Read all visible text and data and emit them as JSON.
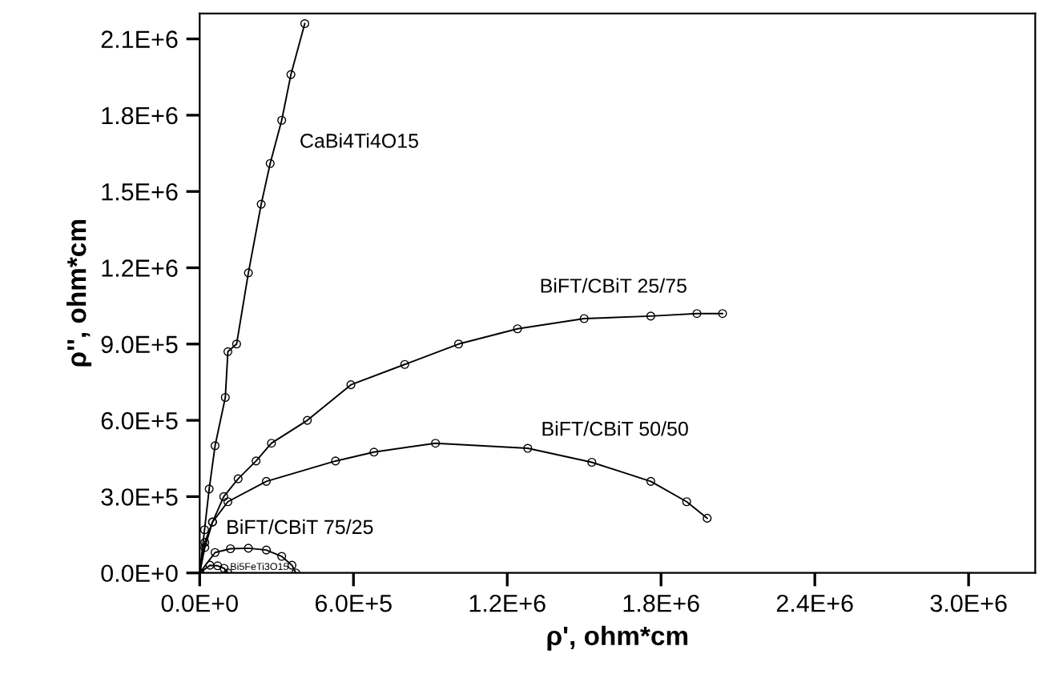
{
  "chart_data": {
    "type": "line",
    "xlabel": "ρ', ohm*cm",
    "ylabel": "ρ'', ohm*cm",
    "marker": "circle",
    "line_style": "solid",
    "grid": false,
    "legend": false,
    "xlim": [
      0,
      3260000
    ],
    "ylim": [
      0,
      2200000
    ],
    "xticks": [
      {
        "value": 0,
        "label": "0.0E+0"
      },
      {
        "value": 600000,
        "label": "6.0E+5"
      },
      {
        "value": 1200000,
        "label": "1.2E+6"
      },
      {
        "value": 1800000,
        "label": "1.8E+6"
      },
      {
        "value": 2400000,
        "label": "2.4E+6"
      },
      {
        "value": 3000000,
        "label": "3.0E+6"
      }
    ],
    "yticks": [
      {
        "value": 0,
        "label": "0.0E+0"
      },
      {
        "value": 300000,
        "label": "3.0E+5"
      },
      {
        "value": 600000,
        "label": "6.0E+5"
      },
      {
        "value": 900000,
        "label": "9.0E+5"
      },
      {
        "value": 1200000,
        "label": "1.2E+6"
      },
      {
        "value": 1500000,
        "label": "1.5E+6"
      },
      {
        "value": 1800000,
        "label": "1.8E+6"
      },
      {
        "value": 2100000,
        "label": "2.1E+6"
      }
    ],
    "series": [
      {
        "name": "CaBi4Ti4O15",
        "color": "#000000",
        "x": [
          0,
          19000,
          37000,
          60000,
          100000,
          110000,
          144000,
          190000,
          240000,
          275000,
          320000,
          356000,
          410000
        ],
        "values": [
          0,
          170000,
          330000,
          500000,
          690000,
          870000,
          900000,
          1180000,
          1450000,
          1610000,
          1780000,
          1960000,
          2160000
        ]
      },
      {
        "name": "BiFT/CBiT 25/75",
        "color": "#000000",
        "x": [
          0,
          20000,
          50000,
          94000,
          150000,
          220000,
          280000,
          420000,
          590000,
          800000,
          1010000,
          1240000,
          1500000,
          1760000,
          1940000,
          2040000
        ],
        "values": [
          0,
          120000,
          200000,
          300000,
          370000,
          440000,
          510000,
          600000,
          740000,
          820000,
          900000,
          960000,
          1000000,
          1010000,
          1020000,
          1020000
        ]
      },
      {
        "name": "BiFT/CBiT 50/50",
        "color": "#000000",
        "x": [
          0,
          20000,
          50000,
          110000,
          260000,
          530000,
          680000,
          920000,
          1280000,
          1530000,
          1760000,
          1900000,
          1980000
        ],
        "values": [
          0,
          100000,
          200000,
          280000,
          360000,
          440000,
          475000,
          510000,
          490000,
          435000,
          360000,
          280000,
          215000
        ]
      },
      {
        "name": "BiFT/CBiT 75/25",
        "color": "#000000",
        "x": [
          0,
          60000,
          120000,
          190000,
          260000,
          320000,
          360000,
          375000
        ],
        "values": [
          0,
          80000,
          95000,
          97000,
          90000,
          65000,
          30000,
          0
        ]
      },
      {
        "name": "Bi5FeTi3O15",
        "color": "#000000",
        "x": [
          0,
          40000,
          70000,
          95000,
          110000
        ],
        "values": [
          0,
          30000,
          28000,
          18000,
          0
        ]
      }
    ]
  }
}
